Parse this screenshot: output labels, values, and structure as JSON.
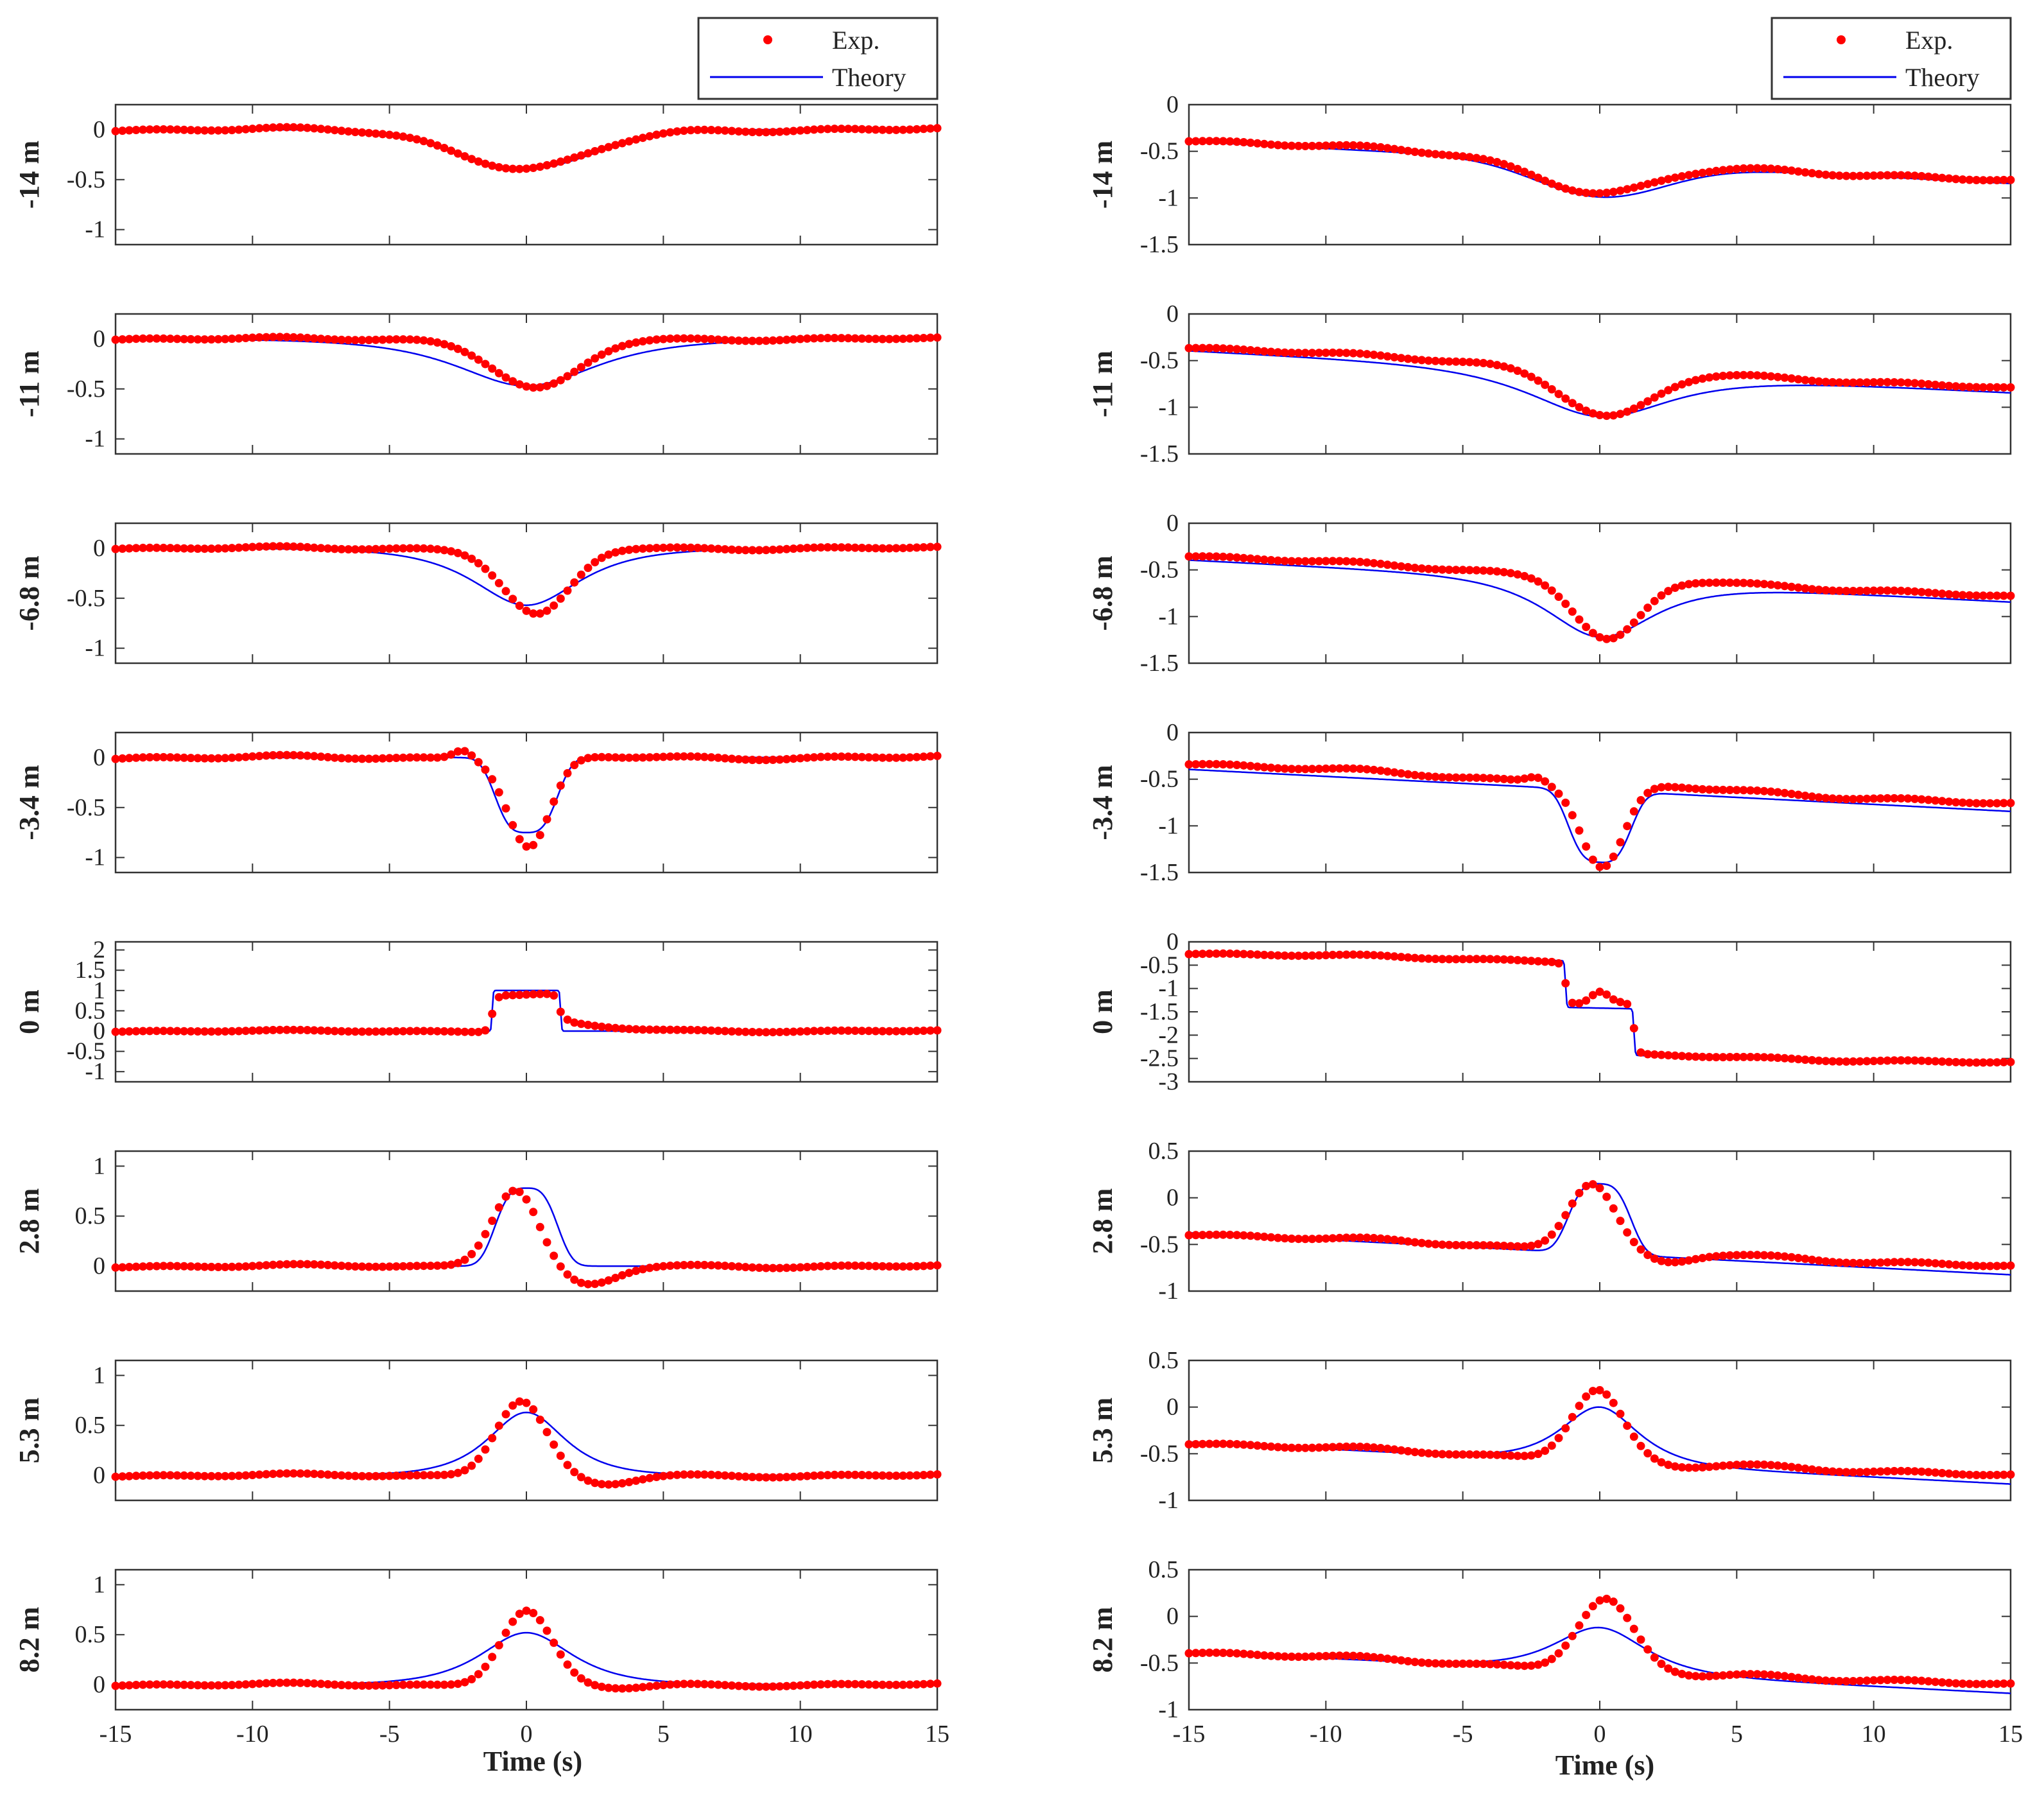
{
  "figure": {
    "legend_exp": "Exp.",
    "legend_theory": "Theory",
    "xlabel": "Time (s)",
    "colors": {
      "exp": "#ff0000",
      "theory": "#0000ee",
      "axes": "#333333"
    }
  },
  "chart_data": [
    {
      "column": "left",
      "type": "line",
      "xlabel": "Time (s)",
      "xlim": [
        -15,
        15
      ],
      "xticks": [
        -15,
        -10,
        -5,
        0,
        5,
        10,
        15
      ],
      "x_tick_labels": [
        "-15",
        "-10",
        "-5",
        "0",
        "5",
        "10",
        "15"
      ],
      "legend": {
        "exp": "Exp.",
        "theory": "Theory",
        "placement": "top-right"
      },
      "panels": [
        {
          "label": "-14 m",
          "ylim": [
            -1.15,
            0.25
          ],
          "ticks": [
            0,
            -0.5,
            -1
          ],
          "tick_labels": [
            "0",
            "-0.5",
            "-1"
          ],
          "theory": {
            "base": 0,
            "slope": 0,
            "center": 0,
            "amplitude": -0.39,
            "width": 3.5,
            "shape": "gauss"
          },
          "exp": {
            "base": 0,
            "slope": 0,
            "center": 0,
            "amplitude": -0.39,
            "width": 3.4,
            "shape": "gauss",
            "wiggle": 0.025
          }
        },
        {
          "label": "-11 m",
          "ylim": [
            -1.15,
            0.25
          ],
          "ticks": [
            0,
            -0.5,
            -1
          ],
          "tick_labels": [
            "0",
            "-0.5",
            "-1"
          ],
          "theory": {
            "base": 0,
            "slope": 0,
            "center": 0,
            "amplitude": -0.47,
            "width": 2.9,
            "shape": "sech"
          },
          "exp": {
            "base": 0,
            "slope": 0,
            "center": 0.4,
            "amplitude": -0.5,
            "width": 2.2,
            "shape": "gauss",
            "wiggle": 0.02
          }
        },
        {
          "label": "-6.8 m",
          "ylim": [
            -1.15,
            0.25
          ],
          "ticks": [
            0,
            -0.5,
            -1
          ],
          "tick_labels": [
            "0",
            "-0.5",
            "-1"
          ],
          "theory": {
            "base": 0,
            "slope": 0,
            "center": 0,
            "amplitude": -0.57,
            "width": 2.2,
            "shape": "sech"
          },
          "exp": {
            "base": 0,
            "slope": 0,
            "center": 0.4,
            "amplitude": -0.67,
            "width": 1.7,
            "shape": "gauss",
            "wiggle": 0.02
          }
        },
        {
          "label": "-3.4 m",
          "ylim": [
            -1.15,
            0.25
          ],
          "ticks": [
            0,
            -0.5,
            -1
          ],
          "tick_labels": [
            "0",
            "-0.5",
            "-1"
          ],
          "theory": {
            "base": 0,
            "slope": 0,
            "center": 0,
            "amplitude": -0.75,
            "width": 1.3,
            "shape": "flat"
          },
          "exp": {
            "base": 0,
            "slope": 0,
            "center": 0.1,
            "amplitude": -0.9,
            "width": 1.1,
            "shape": "gauss",
            "wiggle": 0.025,
            "bump_t": -2.3,
            "bump_a": 0.09
          }
        },
        {
          "label": "0 m",
          "ylim": [
            -1.25,
            2.2
          ],
          "ticks": [
            2,
            1.5,
            1,
            0.5,
            0,
            -0.5,
            -1
          ],
          "tick_labels": [
            "2",
            "1.5",
            "1",
            "0.5",
            "0",
            "-0.5",
            "-1"
          ],
          "theory": {
            "base": 0,
            "slope": 0,
            "center": 0,
            "amplitude": 1.0,
            "width": 1.25,
            "shape": "box"
          },
          "exp": {
            "base": 0,
            "slope": 0,
            "center": 0,
            "amplitude": 0.9,
            "width": 1.25,
            "shape": "box",
            "wiggle": 0.03
          }
        },
        {
          "label": "2.8 m",
          "ylim": [
            -0.25,
            1.15
          ],
          "ticks": [
            1,
            0.5,
            0
          ],
          "tick_labels": [
            "1",
            "0.5",
            "0"
          ],
          "theory": {
            "base": 0,
            "slope": 0,
            "center": 0,
            "amplitude": 0.78,
            "width": 1.3,
            "shape": "flat"
          },
          "exp": {
            "base": 0,
            "slope": 0,
            "center": -0.4,
            "amplitude": 0.78,
            "width": 1.2,
            "shape": "gauss",
            "wiggle": 0.02,
            "trough_t": 2.2,
            "trough_a": -0.2,
            "trough_w": 1.5
          }
        },
        {
          "label": "5.3 m",
          "ylim": [
            -0.25,
            1.15
          ],
          "ticks": [
            1,
            0.5,
            0
          ],
          "tick_labels": [
            "1",
            "0.5",
            "0"
          ],
          "theory": {
            "base": 0,
            "slope": 0,
            "center": 0,
            "amplitude": 0.63,
            "width": 1.6,
            "shape": "sech"
          },
          "exp": {
            "base": 0,
            "slope": 0,
            "center": -0.2,
            "amplitude": 0.75,
            "width": 1.3,
            "shape": "gauss",
            "wiggle": 0.02,
            "trough_t": 2.8,
            "trough_a": -0.1,
            "trough_w": 1.5
          }
        },
        {
          "label": "8.2 m",
          "ylim": [
            -0.25,
            1.15
          ],
          "ticks": [
            1,
            0.5,
            0
          ],
          "tick_labels": [
            "1",
            "0.5",
            "0"
          ],
          "theory": {
            "base": 0,
            "slope": 0,
            "center": 0,
            "amplitude": 0.52,
            "width": 1.9,
            "shape": "sech"
          },
          "exp": {
            "base": 0,
            "slope": 0,
            "center": 0,
            "amplitude": 0.74,
            "width": 1.3,
            "shape": "gauss",
            "wiggle": 0.02,
            "trough_t": 3.2,
            "trough_a": -0.04,
            "trough_w": 1.5
          }
        }
      ]
    },
    {
      "column": "right",
      "type": "line",
      "xlabel": "Time (s)",
      "xlim": [
        -15,
        15
      ],
      "xticks": [
        -15,
        -10,
        -5,
        0,
        5,
        10,
        15
      ],
      "x_tick_labels": [
        "-15",
        "-10",
        "-5",
        "0",
        "5",
        "10",
        "15"
      ],
      "legend": {
        "exp": "Exp.",
        "theory": "Theory",
        "placement": "top-right"
      },
      "panels": [
        {
          "label": "-14 m",
          "ylim": [
            -1.5,
            0
          ],
          "ticks": [
            0,
            -0.5,
            -1,
            -1.5
          ],
          "tick_labels": [
            "0",
            "-0.5",
            "-1",
            "-1.5"
          ],
          "theory": {
            "base": -0.62,
            "slope": -0.015,
            "center": 0,
            "amplitude": -0.37,
            "width": 3.3,
            "shape": "gauss"
          },
          "exp": {
            "base": -0.6,
            "slope": -0.015,
            "center": 0,
            "amplitude": -0.35,
            "width": 3.0,
            "shape": "gauss",
            "wiggle": 0.03
          }
        },
        {
          "label": "-11 m",
          "ylim": [
            -1.5,
            0
          ],
          "ticks": [
            0,
            -0.5,
            -1,
            -1.5
          ],
          "tick_labels": [
            "0",
            "-0.5",
            "-1",
            "-1.5"
          ],
          "theory": {
            "base": -0.62,
            "slope": -0.015,
            "center": 0,
            "amplitude": -0.48,
            "width": 2.9,
            "shape": "sech"
          },
          "exp": {
            "base": -0.58,
            "slope": -0.015,
            "center": 0.3,
            "amplitude": -0.52,
            "width": 2.3,
            "shape": "gauss",
            "wiggle": 0.025
          }
        },
        {
          "label": "-6.8 m",
          "ylim": [
            -1.5,
            0
          ],
          "ticks": [
            0,
            -0.5,
            -1,
            -1.5
          ],
          "tick_labels": [
            "0",
            "-0.5",
            "-1",
            "-1.5"
          ],
          "theory": {
            "base": -0.62,
            "slope": -0.015,
            "center": 0,
            "amplitude": -0.6,
            "width": 2.2,
            "shape": "sech"
          },
          "exp": {
            "base": -0.57,
            "slope": -0.015,
            "center": 0.3,
            "amplitude": -0.68,
            "width": 1.7,
            "shape": "gauss",
            "wiggle": 0.025
          }
        },
        {
          "label": "-3.4 m",
          "ylim": [
            -1.5,
            0
          ],
          "ticks": [
            0,
            -0.5,
            -1,
            -1.5
          ],
          "tick_labels": [
            "0",
            "-0.5",
            "-1",
            "-1.5"
          ],
          "theory": {
            "base": -0.62,
            "slope": -0.015,
            "center": 0,
            "amplitude": -0.77,
            "width": 1.3,
            "shape": "flat"
          },
          "exp": {
            "base": -0.55,
            "slope": -0.015,
            "center": 0.1,
            "amplitude": -0.9,
            "width": 1.1,
            "shape": "gauss",
            "wiggle": 0.03,
            "bump_t": -2.3,
            "bump_a": 0.06
          }
        },
        {
          "label": "0 m",
          "ylim": [
            -3,
            0
          ],
          "ticks": [
            0,
            -0.5,
            -1,
            -1.5,
            -2,
            -2.5,
            -3
          ],
          "tick_labels": [
            "0",
            "-0.5",
            "-1",
            "-1.5",
            "-2",
            "-2.5",
            "-3"
          ],
          "theory": {
            "base": -0.42,
            "slope": -0.012,
            "center": 0,
            "amplitude": -1.0,
            "width": 1.25,
            "shape": "stair",
            "step2": -1.0
          },
          "exp": {
            "base": -0.42,
            "slope": -0.012,
            "center": 0,
            "amplitude": -0.9,
            "width": 1.25,
            "shape": "stair",
            "step2": -1.1,
            "wiggle": 0.04
          }
        },
        {
          "label": "2.8 m",
          "ylim": [
            -1,
            0.5
          ],
          "ticks": [
            0.5,
            0,
            -0.5,
            -1
          ],
          "tick_labels": [
            "0.5",
            "0",
            "-0.5",
            "-1"
          ],
          "theory": {
            "base": -0.6,
            "slope": -0.015,
            "center": 0,
            "amplitude": 0.75,
            "width": 1.3,
            "shape": "flat"
          },
          "exp": {
            "base": -0.56,
            "slope": -0.012,
            "center": -0.3,
            "amplitude": 0.72,
            "width": 1.2,
            "shape": "gauss",
            "wiggle": 0.03,
            "trough_t": 2.4,
            "trough_a": -0.12,
            "trough_w": 1.3
          }
        },
        {
          "label": "5.3 m",
          "ylim": [
            -1,
            0.5
          ],
          "ticks": [
            0.5,
            0,
            -0.5,
            -1
          ],
          "tick_labels": [
            "0.5",
            "0",
            "-0.5",
            "-1"
          ],
          "theory": {
            "base": -0.6,
            "slope": -0.015,
            "center": 0,
            "amplitude": 0.6,
            "width": 1.6,
            "shape": "sech"
          },
          "exp": {
            "base": -0.56,
            "slope": -0.012,
            "center": -0.1,
            "amplitude": 0.75,
            "width": 1.3,
            "shape": "gauss",
            "wiggle": 0.03,
            "trough_t": 2.8,
            "trough_a": -0.06,
            "trough_w": 1.5
          }
        },
        {
          "label": "8.2 m",
          "ylim": [
            -1,
            0.5
          ],
          "ticks": [
            0.5,
            0,
            -0.5,
            -1
          ],
          "tick_labels": [
            "0.5",
            "0",
            "-0.5",
            "-1"
          ],
          "theory": {
            "base": -0.6,
            "slope": -0.015,
            "center": 0,
            "amplitude": 0.48,
            "width": 1.9,
            "shape": "sech"
          },
          "exp": {
            "base": -0.56,
            "slope": -0.012,
            "center": 0.2,
            "amplitude": 0.74,
            "width": 1.4,
            "shape": "gauss",
            "wiggle": 0.03,
            "trough_t": 3.3,
            "trough_a": -0.04,
            "trough_w": 1.5
          }
        }
      ]
    }
  ]
}
